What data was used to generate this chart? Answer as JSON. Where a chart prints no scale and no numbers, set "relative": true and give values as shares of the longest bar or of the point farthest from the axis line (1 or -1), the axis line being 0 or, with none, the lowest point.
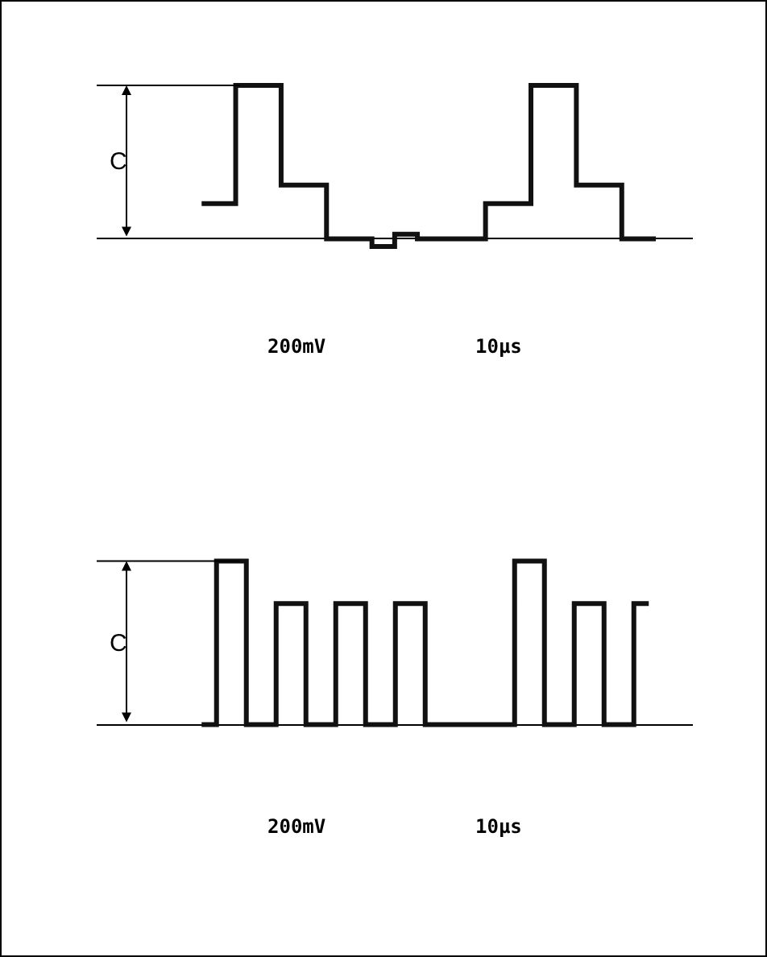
{
  "chart_data": [
    {
      "type": "step",
      "relative": true,
      "categories": [
        null,
        null,
        null,
        null,
        null,
        null,
        null,
        null,
        null,
        null,
        null,
        null,
        null,
        null,
        null,
        null,
        null,
        null,
        null,
        null,
        null
      ],
      "values": [
        0.23,
        0.23,
        1,
        1,
        0.35,
        0.35,
        0,
        0,
        -0.05,
        0.03,
        0,
        0,
        0,
        0.23,
        0.23,
        1,
        1,
        0.35,
        0.35,
        0,
        0
      ],
      "color": "#111111",
      "ref_lines": [
        {
          "axis": "y",
          "value": 1
        }
      ],
      "annotations": [
        "C",
        "200mV",
        "10µs"
      ]
    },
    {
      "type": "step",
      "relative": true,
      "categories": [
        null,
        null,
        null,
        null,
        null,
        null,
        null,
        null,
        null,
        null,
        null,
        null,
        null,
        null,
        null,
        null
      ],
      "values": [
        0,
        1,
        0,
        0.74,
        0,
        0.74,
        0,
        0.74,
        0,
        0,
        0,
        1,
        0,
        0.74,
        0,
        0.74
      ],
      "color": "#111111",
      "ref_lines": [
        {
          "axis": "y",
          "value": 1
        }
      ],
      "annotations": [
        "C",
        "200mV",
        "10µs"
      ]
    }
  ]
}
